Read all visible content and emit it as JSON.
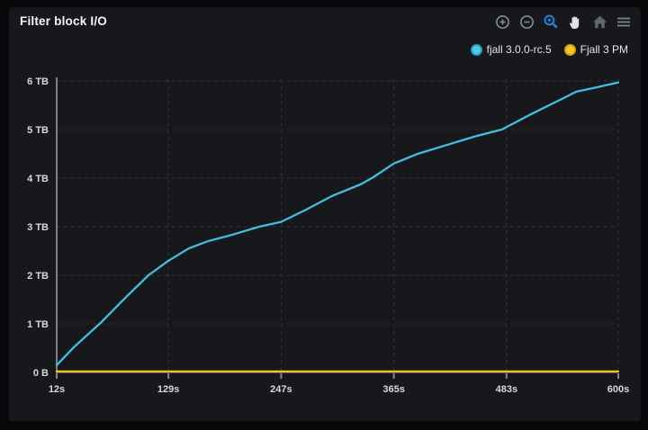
{
  "panel": {
    "title": "Filter block I/O",
    "background": "#17181b"
  },
  "toolbar": {
    "icons": [
      {
        "name": "zoom-in-circle-icon",
        "color": "#878d95"
      },
      {
        "name": "zoom-out-circle-icon",
        "color": "#878d95"
      },
      {
        "name": "zoom-magnifier-icon",
        "color": "#2f7cd6",
        "active": true
      },
      {
        "name": "pan-hand-icon",
        "color": "#dde1e6"
      },
      {
        "name": "home-icon",
        "color": "#5f6670"
      },
      {
        "name": "menu-icon",
        "color": "#7d8590"
      }
    ]
  },
  "legend": {
    "items": [
      {
        "label": "fjall 3.0.0-rc.5",
        "marker_fill": "#55c8e9",
        "marker_border": "#2d9fc6"
      },
      {
        "label": "Fjall 3 PM",
        "marker_fill": "#f6c62d",
        "marker_border": "#cfa413"
      }
    ]
  },
  "chart_data": {
    "type": "line",
    "title": "Filter block I/O",
    "xlabel": "",
    "ylabel": "",
    "xlim": [
      12,
      600
    ],
    "ylim": [
      0,
      6
    ],
    "x_ticks": [
      {
        "value": 12,
        "label": "12s"
      },
      {
        "value": 129,
        "label": "129s"
      },
      {
        "value": 247,
        "label": "247s"
      },
      {
        "value": 365,
        "label": "365s"
      },
      {
        "value": 483,
        "label": "483s"
      },
      {
        "value": 600,
        "label": "600s"
      }
    ],
    "y_ticks": [
      {
        "value": 0,
        "label": "0 B"
      },
      {
        "value": 1,
        "label": "1 TB"
      },
      {
        "value": 2,
        "label": "2 TB"
      },
      {
        "value": 3,
        "label": "3 TB"
      },
      {
        "value": 4,
        "label": "4 TB"
      },
      {
        "value": 5,
        "label": "5 TB"
      },
      {
        "value": 6,
        "label": "6 TB"
      }
    ],
    "grid": "dashed",
    "legend_position": "top-right",
    "series": [
      {
        "name": "fjall 3.0.0-rc.5",
        "color": "#46bcde",
        "points": [
          [
            12,
            0.15
          ],
          [
            30,
            0.52
          ],
          [
            58,
            1.02
          ],
          [
            85,
            1.56
          ],
          [
            108,
            2.0
          ],
          [
            129,
            2.3
          ],
          [
            150,
            2.55
          ],
          [
            170,
            2.7
          ],
          [
            195,
            2.83
          ],
          [
            224,
            3.0
          ],
          [
            247,
            3.1
          ],
          [
            273,
            3.35
          ],
          [
            300,
            3.63
          ],
          [
            330,
            3.87
          ],
          [
            342,
            4.0
          ],
          [
            365,
            4.3
          ],
          [
            390,
            4.5
          ],
          [
            420,
            4.68
          ],
          [
            450,
            4.86
          ],
          [
            478,
            5.0
          ],
          [
            510,
            5.33
          ],
          [
            540,
            5.62
          ],
          [
            556,
            5.78
          ],
          [
            575,
            5.86
          ],
          [
            600,
            5.97
          ]
        ]
      },
      {
        "name": "Fjall 3 PM",
        "color": "#f2c21f",
        "points": [
          [
            12,
            0.02
          ],
          [
            600,
            0.02
          ]
        ]
      }
    ]
  }
}
